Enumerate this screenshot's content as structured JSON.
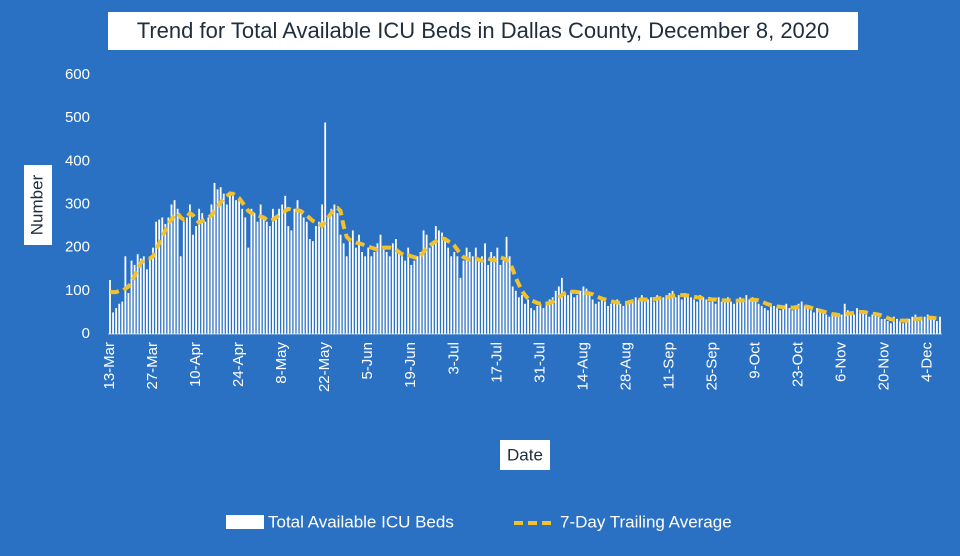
{
  "chart_data": {
    "type": "bar_line",
    "title": "Trend for Total Available ICU Beds in Dallas County, December 8, 2020",
    "y_label": "Number",
    "x_label": "Date",
    "categories": [
      "13-Mar",
      null,
      null,
      null,
      null,
      null,
      null,
      null,
      null,
      null,
      null,
      null,
      null,
      null,
      "27-Mar",
      null,
      null,
      null,
      null,
      null,
      null,
      null,
      null,
      null,
      null,
      null,
      null,
      null,
      "10-Apr",
      null,
      null,
      null,
      null,
      null,
      null,
      null,
      null,
      null,
      null,
      null,
      null,
      null,
      "24-Apr",
      null,
      null,
      null,
      null,
      null,
      null,
      null,
      null,
      null,
      null,
      null,
      null,
      null,
      "8-May",
      null,
      null,
      null,
      null,
      null,
      null,
      null,
      null,
      null,
      null,
      null,
      null,
      null,
      "22-May",
      null,
      null,
      null,
      null,
      null,
      null,
      null,
      null,
      null,
      null,
      null,
      null,
      null,
      "5-Jun",
      null,
      null,
      null,
      null,
      null,
      null,
      null,
      null,
      null,
      null,
      null,
      null,
      null,
      "19-Jun",
      null,
      null,
      null,
      null,
      null,
      null,
      null,
      null,
      null,
      null,
      null,
      null,
      null,
      "3-Jul",
      null,
      null,
      null,
      null,
      null,
      null,
      null,
      null,
      null,
      null,
      null,
      null,
      null,
      "17-Jul",
      null,
      null,
      null,
      null,
      null,
      null,
      null,
      null,
      null,
      null,
      null,
      null,
      null,
      "31-Jul",
      null,
      null,
      null,
      null,
      null,
      null,
      null,
      null,
      null,
      null,
      null,
      null,
      null,
      "14-Aug",
      null,
      null,
      null,
      null,
      null,
      null,
      null,
      null,
      null,
      null,
      null,
      null,
      null,
      "28-Aug",
      null,
      null,
      null,
      null,
      null,
      null,
      null,
      null,
      null,
      null,
      null,
      null,
      null,
      "11-Sep",
      null,
      null,
      null,
      null,
      null,
      null,
      null,
      null,
      null,
      null,
      null,
      null,
      null,
      "25-Sep",
      null,
      null,
      null,
      null,
      null,
      null,
      null,
      null,
      null,
      null,
      null,
      null,
      null,
      "9-Oct",
      null,
      null,
      null,
      null,
      null,
      null,
      null,
      null,
      null,
      null,
      null,
      null,
      null,
      "23-Oct",
      null,
      null,
      null,
      null,
      null,
      null,
      null,
      null,
      null,
      null,
      null,
      null,
      null,
      "6-Nov",
      null,
      null,
      null,
      null,
      null,
      null,
      null,
      null,
      null,
      null,
      null,
      null,
      null,
      "20-Nov",
      null,
      null,
      null,
      null,
      null,
      null,
      null,
      null,
      null,
      null,
      null,
      null,
      null,
      "4-Dec",
      null,
      null,
      null,
      null
    ],
    "series": [
      {
        "name": "Total Available ICU Beds",
        "type": "bar",
        "color": "#ffffff",
        "values": [
          125,
          50,
          60,
          70,
          75,
          180,
          95,
          170,
          160,
          185,
          175,
          180,
          150,
          175,
          200,
          260,
          265,
          270,
          255,
          270,
          300,
          310,
          290,
          180,
          260,
          270,
          300,
          230,
          250,
          290,
          280,
          260,
          270,
          300,
          350,
          335,
          340,
          325,
          300,
          330,
          320,
          310,
          310,
          290,
          270,
          200,
          290,
          280,
          260,
          300,
          270,
          260,
          250,
          290,
          270,
          290,
          300,
          320,
          250,
          240,
          290,
          310,
          280,
          270,
          260,
          220,
          215,
          250,
          260,
          300,
          490,
          270,
          290,
          300,
          280,
          230,
          210,
          180,
          220,
          240,
          200,
          230,
          190,
          180,
          200,
          180,
          190,
          210,
          230,
          200,
          190,
          180,
          210,
          220,
          190,
          180,
          170,
          200,
          160,
          170,
          180,
          190,
          240,
          230,
          200,
          210,
          250,
          240,
          235,
          220,
          200,
          180,
          190,
          180,
          130,
          170,
          200,
          190,
          180,
          200,
          170,
          180,
          210,
          160,
          190,
          180,
          200,
          160,
          170,
          225,
          180,
          110,
          100,
          85,
          90,
          70,
          80,
          60,
          55,
          65,
          70,
          60,
          75,
          80,
          85,
          100,
          110,
          130,
          95,
          90,
          100,
          85,
          90,
          100,
          110,
          105,
          95,
          80,
          70,
          75,
          80,
          75,
          65,
          70,
          75,
          80,
          70,
          65,
          70,
          75,
          80,
          85,
          80,
          90,
          75,
          80,
          85,
          75,
          90,
          80,
          85,
          90,
          95,
          100,
          85,
          90,
          80,
          95,
          90,
          85,
          80,
          75,
          90,
          85,
          80,
          75,
          80,
          70,
          85,
          75,
          80,
          85,
          75,
          70,
          80,
          85,
          75,
          90,
          80,
          85,
          80,
          70,
          65,
          60,
          55,
          70,
          65,
          60,
          55,
          65,
          70,
          60,
          55,
          65,
          70,
          75,
          65,
          60,
          55,
          50,
          60,
          55,
          50,
          45,
          40,
          45,
          50,
          40,
          45,
          70,
          55,
          50,
          45,
          60,
          55,
          50,
          45,
          40,
          45,
          50,
          40,
          35,
          35,
          30,
          25,
          40,
          35,
          30,
          25,
          30,
          35,
          40,
          45,
          30,
          35,
          40,
          45,
          40,
          35,
          30,
          40
        ]
      },
      {
        "name": "7-Day Trailing Average",
        "type": "line",
        "color": "#f2c12e",
        "values": [
          97,
          97,
          97,
          100,
          100,
          105,
          110,
          120,
          135,
          150,
          165,
          170,
          175,
          175,
          180,
          195,
          210,
          225,
          240,
          255,
          265,
          275,
          280,
          270,
          265,
          270,
          280,
          275,
          265,
          258,
          262,
          265,
          270,
          275,
          285,
          295,
          305,
          315,
          320,
          325,
          325,
          320,
          315,
          305,
          295,
          285,
          280,
          278,
          275,
          272,
          270,
          265,
          262,
          265,
          270,
          275,
          280,
          285,
          290,
          288,
          285,
          287,
          285,
          280,
          275,
          268,
          262,
          258,
          255,
          250,
          260,
          270,
          280,
          290,
          292,
          285,
          250,
          225,
          218,
          215,
          212,
          210,
          208,
          205,
          203,
          200,
          198,
          195,
          198,
          200,
          200,
          200,
          198,
          195,
          190,
          185,
          182,
          183,
          180,
          178,
          176,
          180,
          190,
          200,
          205,
          210,
          215,
          220,
          222,
          220,
          215,
          212,
          205,
          195,
          185,
          178,
          175,
          172,
          172,
          175,
          172,
          170,
          172,
          175,
          172,
          170,
          175,
          178,
          175,
          172,
          165,
          150,
          130,
          115,
          100,
          90,
          82,
          78,
          75,
          72,
          70,
          70,
          70,
          72,
          75,
          80,
          85,
          90,
          95,
          97,
          98,
          98,
          97,
          96,
          96,
          95,
          94,
          92,
          88,
          85,
          82,
          80,
          78,
          76,
          74,
          73,
          72,
          72,
          72,
          74,
          76,
          78,
          79,
          80,
          80,
          80,
          80,
          81,
          82,
          83,
          84,
          85,
          86,
          88,
          89,
          90,
          90,
          90,
          89,
          88,
          86,
          85,
          84,
          83,
          82,
          81,
          80,
          80,
          79,
          78,
          78,
          78,
          78,
          77,
          77,
          78,
          78,
          79,
          79,
          79,
          79,
          78,
          75,
          72,
          69,
          67,
          66,
          64,
          63,
          62,
          62,
          62,
          61,
          62,
          63,
          64,
          64,
          63,
          61,
          58,
          56,
          54,
          52,
          50,
          48,
          46,
          45,
          44,
          44,
          45,
          47,
          48,
          49,
          50,
          51,
          51,
          50,
          48,
          47,
          46,
          45,
          43,
          40,
          37,
          34,
          33,
          32,
          31,
          31,
          31,
          32,
          34,
          35,
          35,
          36,
          36,
          37,
          38,
          37,
          36,
          35
        ]
      }
    ],
    "ylim": [
      0,
      600
    ],
    "yticks": [
      0,
      100,
      200,
      300,
      400,
      500,
      600
    ],
    "legend": "bottom"
  }
}
